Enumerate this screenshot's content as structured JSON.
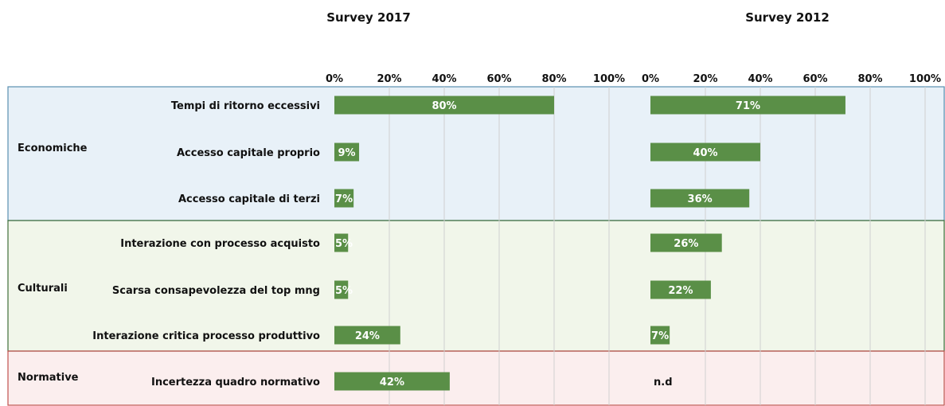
{
  "chart_data": {
    "type": "bar",
    "orientation": "horizontal",
    "panels": [
      {
        "title": "Survey 2017"
      },
      {
        "title": "Survey 2012"
      }
    ],
    "ticks": [
      "0%",
      "20%",
      "40%",
      "60%",
      "80%",
      "100%"
    ],
    "xlim": [
      0,
      100
    ],
    "grid": true,
    "groups": [
      {
        "name": "Economiche",
        "color": "#e8f1f8",
        "items": [
          {
            "label": "Tempi di ritorno eccessivi",
            "values": [
              80,
              71
            ],
            "value_labels": [
              "80%",
              "71%"
            ]
          },
          {
            "label": "Accesso capitale proprio",
            "values": [
              9,
              40
            ],
            "value_labels": [
              "9%",
              "40%"
            ]
          },
          {
            "label": "Accesso capitale di terzi",
            "values": [
              7,
              36
            ],
            "value_labels": [
              "7%",
              "36%"
            ]
          }
        ]
      },
      {
        "name": "Culturali",
        "color": "#f1f6ea",
        "items": [
          {
            "label": "Interazione con processo acquisto",
            "values": [
              5,
              26
            ],
            "value_labels": [
              "5%",
              "26%"
            ]
          },
          {
            "label": "Scarsa consapevolezza del top mng",
            "values": [
              5,
              22
            ],
            "value_labels": [
              "5%",
              "22%"
            ]
          },
          {
            "label": "Interazione critica processo produttivo",
            "values": [
              24,
              7
            ],
            "value_labels": [
              "24%",
              "7%"
            ]
          }
        ]
      },
      {
        "name": "Normative",
        "color": "#fbeeee",
        "items": [
          {
            "label": "Incertezza quadro normativo",
            "values": [
              42,
              null
            ],
            "value_labels": [
              "42%",
              "n.d"
            ]
          }
        ]
      }
    ],
    "colors": {
      "bar": "#5a8f47",
      "grid": "#d0d0d0",
      "border_economiche": "#5a8fb0",
      "border_culturali": "#3f6f3a",
      "border_normative": "#c0504d"
    }
  }
}
